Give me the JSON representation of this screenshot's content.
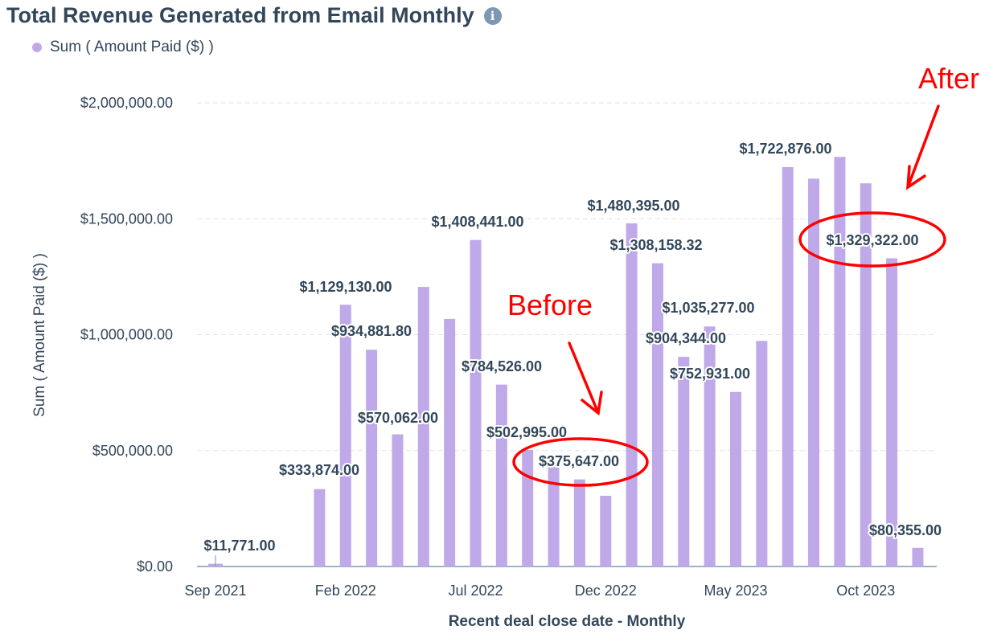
{
  "chart_data": {
    "type": "bar",
    "title": "Total Revenue Generated from Email Monthly",
    "legend": [
      {
        "name": "Sum ( Amount Paid ($) )",
        "color": "#bfa9e9"
      }
    ],
    "legend_position": "top-left",
    "xlabel": "Recent deal close date - Monthly",
    "ylabel": "Sum ( Amount Paid ($) )",
    "ylim": [
      0,
      2000000
    ],
    "grid": true,
    "y_ticks": [
      {
        "value": 0,
        "label": "$0.00"
      },
      {
        "value": 500000,
        "label": "$500,000.00"
      },
      {
        "value": 1000000,
        "label": "$1,000,000.00"
      },
      {
        "value": 1500000,
        "label": "$1,500,000.00"
      },
      {
        "value": 2000000,
        "label": "$2,000,000.00"
      }
    ],
    "x_tick_labels": [
      {
        "index": 0,
        "label": "Sep 2021"
      },
      {
        "index": 5,
        "label": "Feb 2022"
      },
      {
        "index": 10,
        "label": "Jul 2022"
      },
      {
        "index": 15,
        "label": "Dec 2022"
      },
      {
        "index": 20,
        "label": "May 2023"
      },
      {
        "index": 25,
        "label": "Oct 2023"
      }
    ],
    "categories": [
      "Sep 2021",
      "Oct 2021",
      "Nov 2021",
      "Dec 2021",
      "Jan 2022",
      "Feb 2022",
      "Mar 2022",
      "Apr 2022",
      "May 2022",
      "Jun 2022",
      "Jul 2022",
      "Aug 2022",
      "Sep 2022",
      "Oct 2022",
      "Nov 2022",
      "Dec 2022",
      "Jan 2023",
      "Feb 2023",
      "Mar 2023",
      "Apr 2023",
      "May 2023",
      "Jun 2023",
      "Jul 2023",
      "Aug 2023",
      "Sep 2023",
      "Oct 2023",
      "Nov 2023",
      "Dec 2023"
    ],
    "values": [
      11771,
      0,
      0,
      0,
      333874,
      1129130,
      934881.8,
      570062,
      1206000,
      1068000,
      1408441,
      784526,
      502995,
      430000,
      375647,
      305000,
      1480395,
      1308158.32,
      904344,
      1035277,
      752931,
      973000,
      1722876,
      1673000,
      1767000,
      1653000,
      1329322,
      80355
    ],
    "data_labels": [
      {
        "index": 0,
        "text": "$11,771.00"
      },
      {
        "index": 4,
        "text": "$333,874.00"
      },
      {
        "index": 5,
        "text": "$1,129,130.00"
      },
      {
        "index": 6,
        "text": "$934,881.80"
      },
      {
        "index": 7,
        "text": "$570,062.00"
      },
      {
        "index": 10,
        "text": "$1,408,441.00"
      },
      {
        "index": 11,
        "text": "$784,526.00"
      },
      {
        "index": 12,
        "text": "$502,995.00"
      },
      {
        "index": 14,
        "text": "$375,647.00"
      },
      {
        "index": 16,
        "text": "$1,480,395.00"
      },
      {
        "index": 17,
        "text": "$1,308,158.32"
      },
      {
        "index": 19,
        "text": "$1,035,277.00"
      },
      {
        "index": 18,
        "text": "$904,344.00"
      },
      {
        "index": 20,
        "text": "$752,931.00"
      },
      {
        "index": 22,
        "text": "$1,722,876.00"
      },
      {
        "index": 26,
        "text": "$1,329,322.00"
      },
      {
        "index": 27,
        "text": "$80,355.00"
      }
    ],
    "annotations": [
      {
        "text": "Before",
        "color": "#ff0000",
        "highlights": "$375,647.00"
      },
      {
        "text": "After",
        "color": "#ff0000",
        "highlights": "$1,329,322.00"
      }
    ]
  },
  "info_icon": "info-icon"
}
